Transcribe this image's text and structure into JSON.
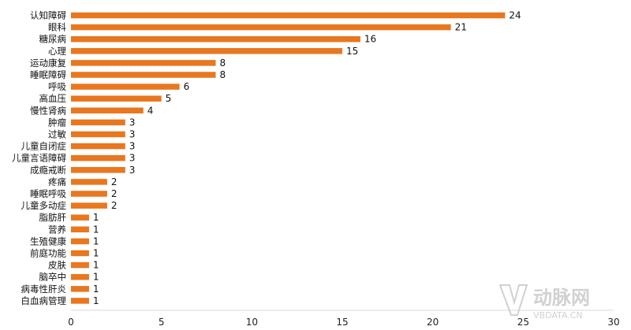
{
  "chart_data": {
    "type": "bar",
    "orientation": "horizontal",
    "categories": [
      "认知障碍",
      "眼科",
      "糖尿病",
      "心理",
      "运动康复",
      "睡眠障碍",
      "呼吸",
      "高血压",
      "慢性肾病",
      "肿瘤",
      "过敏",
      "儿童自闭症",
      "儿童言语障碍",
      "成瘾戒断",
      "疼痛",
      "睡眠呼吸",
      "儿童多动症",
      "脂肪肝",
      "营养",
      "生殖健康",
      "前庭功能",
      "皮肤",
      "脑卒中",
      "病毒性肝炎",
      "白血病管理"
    ],
    "values": [
      24,
      21,
      16,
      15,
      8,
      8,
      6,
      5,
      4,
      3,
      3,
      3,
      3,
      3,
      2,
      2,
      2,
      1,
      1,
      1,
      1,
      1,
      1,
      1,
      1
    ],
    "xlim": [
      0,
      30
    ],
    "xticks": [
      "0",
      "5",
      "10",
      "15",
      "20",
      "25",
      "30"
    ],
    "title": "",
    "xlabel": "",
    "ylabel": "",
    "grid": false,
    "legend": "none",
    "bar_color": "#E8771F",
    "axis_color": "#D9D9D9"
  },
  "watermark": {
    "text": "动脉网",
    "subtext": "VBDATA.CN",
    "color": "#C9C9C9"
  }
}
